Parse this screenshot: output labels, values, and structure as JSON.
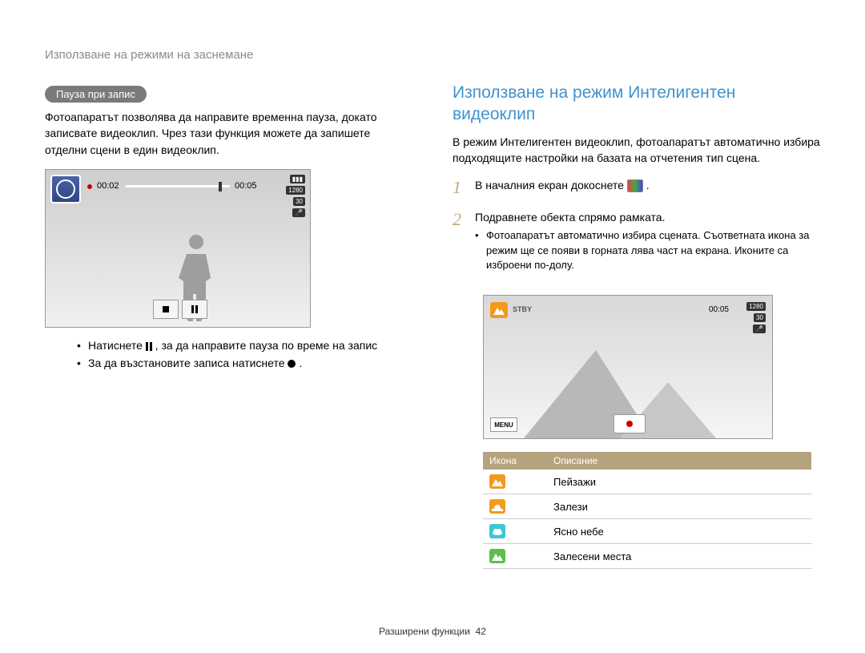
{
  "breadcrumb": "Използване на режими на заснемане",
  "left": {
    "section_label": "Пауза при запис",
    "intro": "Фотоапаратът позволява да направите временна пауза, докато записвате видеоклип. Чрез тази функция можете да запишете отделни сцени в един видеоклип.",
    "lcd": {
      "elapsed": "00:02",
      "duration": "00:05",
      "badges": [
        "⏻",
        "1280 HQ",
        "30",
        "🎤"
      ],
      "controls": {
        "stop": "stop",
        "pause": "pause"
      }
    },
    "bullet1_pre": "Натиснете ",
    "bullet1_post": ", за да направите пауза по време на запис",
    "bullet2_pre": "За да възстановите записа натиснете ",
    "bullet2_post": "."
  },
  "right": {
    "heading": "Използване на режим Интелигентен видеоклип",
    "intro": "В режим Интелигентен видеоклип, фотоапаратът автоматично избира подходящите настройки на базата на отчетения тип сцена.",
    "step1_pre": "В началния екран докоснете ",
    "step1_post": ".",
    "step2": "Подравнете обекта спрямо рамката.",
    "step2_sub": "Фотоапаратът автоматично избира сцената. Съответната икона за режим ще се появи в горната лява част на екрана. Иконите са изброени по-долу.",
    "lcd2": {
      "stby": "STBY",
      "time": "00:05",
      "menu": "MENU",
      "badges": [
        "1280 HQ",
        "30",
        "🎤"
      ]
    },
    "table": {
      "col_icon": "Икона",
      "col_desc": "Описание",
      "rows": [
        {
          "color": "#f39a1d",
          "label": "Пейзажи",
          "kind": "mountain"
        },
        {
          "color": "#f39a1d",
          "label": "Залези",
          "kind": "sunset"
        },
        {
          "color": "#3dc6d6",
          "label": "Ясно небе",
          "kind": "cloud"
        },
        {
          "color": "#5bbf4a",
          "label": "Залесени места",
          "kind": "mountain"
        }
      ]
    }
  },
  "footer": {
    "section": "Разширени функции",
    "page": "42"
  }
}
